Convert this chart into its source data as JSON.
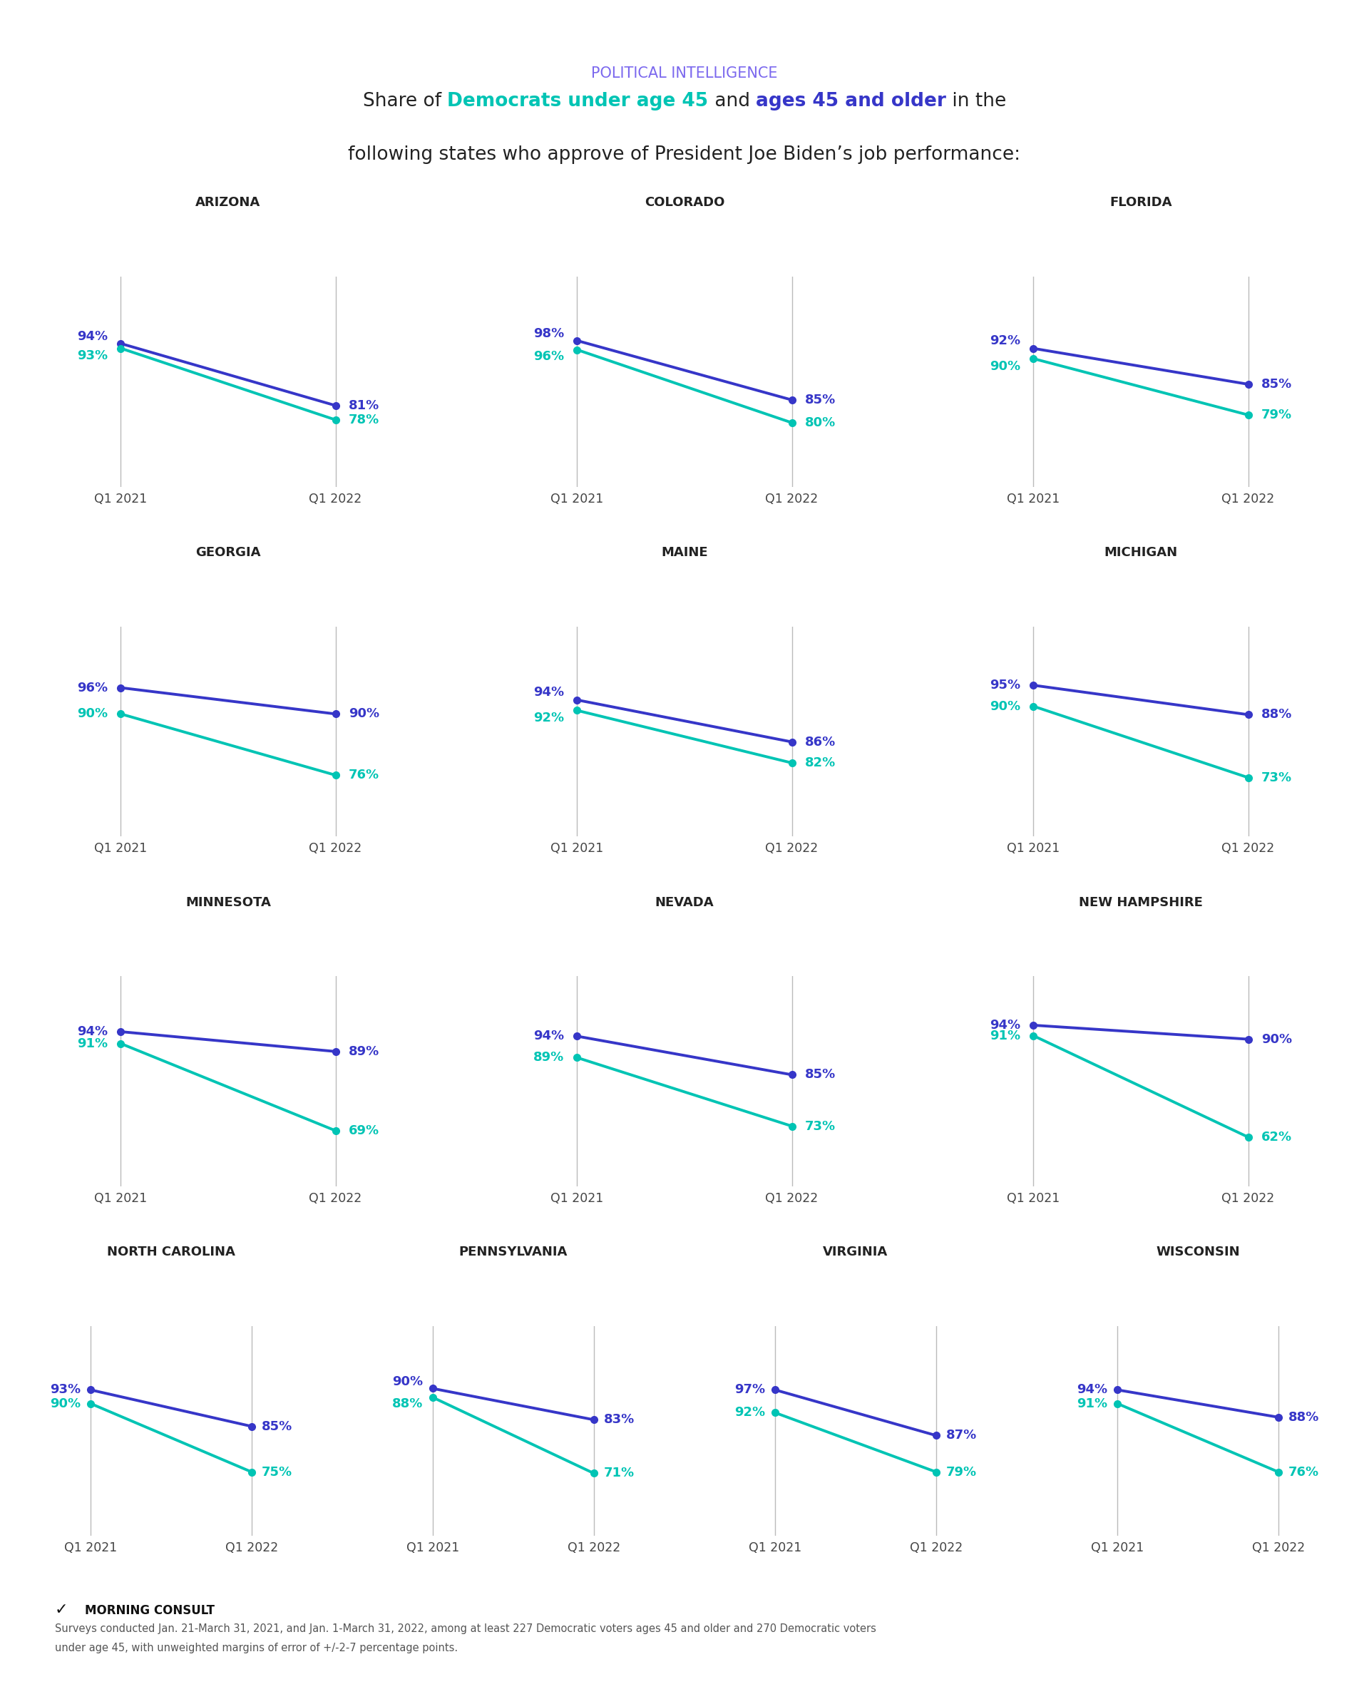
{
  "title_label": "POLITICAL INTELLIGENCE",
  "title_color": "#7B68EE",
  "color_under45": "#00C4B4",
  "color_45plus": "#3636C8",
  "header_bar_color": "#00C4B4",
  "states_row1": [
    {
      "name": "ARIZONA",
      "under45_2021": 94,
      "under45_2022": 81,
      "over45_2021": 93,
      "over45_2022": 78
    },
    {
      "name": "COLORADO",
      "under45_2021": 98,
      "under45_2022": 85,
      "over45_2021": 96,
      "over45_2022": 80
    },
    {
      "name": "FLORIDA",
      "under45_2021": 92,
      "under45_2022": 85,
      "over45_2021": 90,
      "over45_2022": 79
    }
  ],
  "states_row2": [
    {
      "name": "GEORGIA",
      "under45_2021": 96,
      "under45_2022": 90,
      "over45_2021": 90,
      "over45_2022": 76
    },
    {
      "name": "MAINE",
      "under45_2021": 94,
      "under45_2022": 86,
      "over45_2021": 92,
      "over45_2022": 82
    },
    {
      "name": "MICHIGAN",
      "under45_2021": 95,
      "under45_2022": 88,
      "over45_2021": 90,
      "over45_2022": 73
    }
  ],
  "states_row3": [
    {
      "name": "MINNESOTA",
      "under45_2021": 94,
      "under45_2022": 89,
      "over45_2021": 91,
      "over45_2022": 69
    },
    {
      "name": "NEVADA",
      "under45_2021": 94,
      "under45_2022": 85,
      "over45_2021": 89,
      "over45_2022": 73
    },
    {
      "name": "NEW HAMPSHIRE",
      "under45_2021": 94,
      "under45_2022": 90,
      "over45_2021": 91,
      "over45_2022": 62
    }
  ],
  "states_row4": [
    {
      "name": "NORTH CAROLINA",
      "under45_2021": 93,
      "under45_2022": 85,
      "over45_2021": 90,
      "over45_2022": 75
    },
    {
      "name": "PENNSYLVANIA",
      "under45_2021": 90,
      "under45_2022": 83,
      "over45_2021": 88,
      "over45_2022": 71
    },
    {
      "name": "VIRGINIA",
      "under45_2021": 97,
      "under45_2022": 87,
      "over45_2021": 92,
      "over45_2022": 79
    },
    {
      "name": "WISCONSIN",
      "under45_2021": 94,
      "under45_2022": 88,
      "over45_2021": 91,
      "over45_2022": 76
    }
  ],
  "subtitle_line2": "following states who approve of President Joe Biden’s job performance:",
  "footnote_line1": "Surveys conducted Jan. 21-March 31, 2021, and Jan. 1-March 31, 2022, among at least 227 Democratic voters ages 45 and older and 270 Democratic voters",
  "footnote_line2": "under age 45, with unweighted margins of error of +/-2-7 percentage points."
}
